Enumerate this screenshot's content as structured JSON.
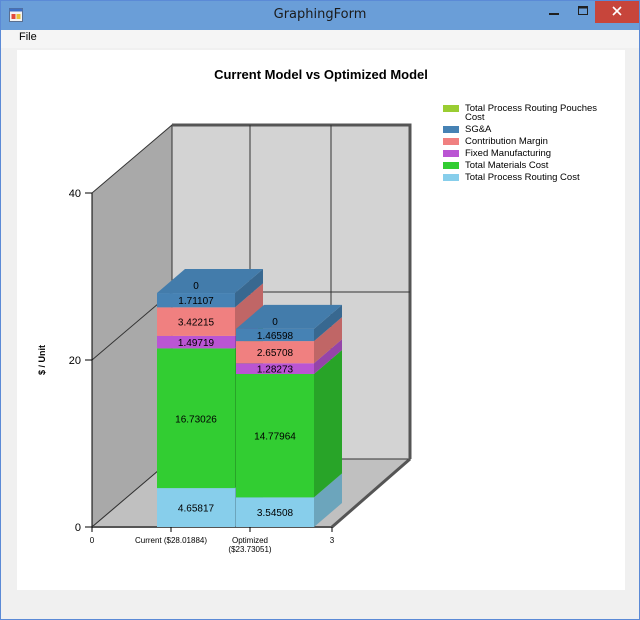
{
  "window": {
    "title": "GraphingForm"
  },
  "menu": {
    "file": "File"
  },
  "chart_data": {
    "type": "bar",
    "stacked": true,
    "three_d": true,
    "title": "Current Model vs Optimized Model",
    "ylabel": "$ / Unit",
    "xlabel": "",
    "ylim": [
      0,
      40
    ],
    "yticks": [
      "0",
      "20",
      "40"
    ],
    "x_tick_labels": [
      "0",
      "Current ($28.01884)",
      "Optimized ($23.73051)",
      "3"
    ],
    "categories": [
      "Current ($28.01884)",
      "Optimized ($23.73051)"
    ],
    "series": [
      {
        "name": "Total Process Routing Cost",
        "color": "#87ceeb",
        "values": [
          4.65817,
          3.54508
        ],
        "labels": [
          "4.65817",
          "3.54508"
        ]
      },
      {
        "name": "Total Materials Cost",
        "color": "#32cd32",
        "values": [
          16.73026,
          14.77964
        ],
        "labels": [
          "16.73026",
          "14.77964"
        ]
      },
      {
        "name": "Fixed Manufacturing",
        "color": "#ba55d3",
        "values": [
          1.49719,
          1.28273
        ],
        "labels": [
          "1.49719",
          "1.28273"
        ]
      },
      {
        "name": "Contribution Margin",
        "color": "#f08080",
        "values": [
          3.42215,
          2.65708
        ],
        "labels": [
          "3.42215",
          "2.65708"
        ]
      },
      {
        "name": "SG&A",
        "color": "#4682b4",
        "values": [
          1.71107,
          1.46598
        ],
        "labels": [
          "1.71107",
          "1.46598"
        ]
      },
      {
        "name": "Total Process Routing Pouches Cost",
        "color": "#9acd32",
        "values": [
          0,
          0
        ],
        "labels": [
          "0",
          "0"
        ]
      }
    ],
    "legend": {
      "position": "top-right",
      "order": [
        5,
        4,
        3,
        2,
        1,
        0
      ],
      "lines": {
        "5": [
          "Total Process Routing Pouches",
          "Cost"
        ]
      }
    },
    "grid": true
  }
}
